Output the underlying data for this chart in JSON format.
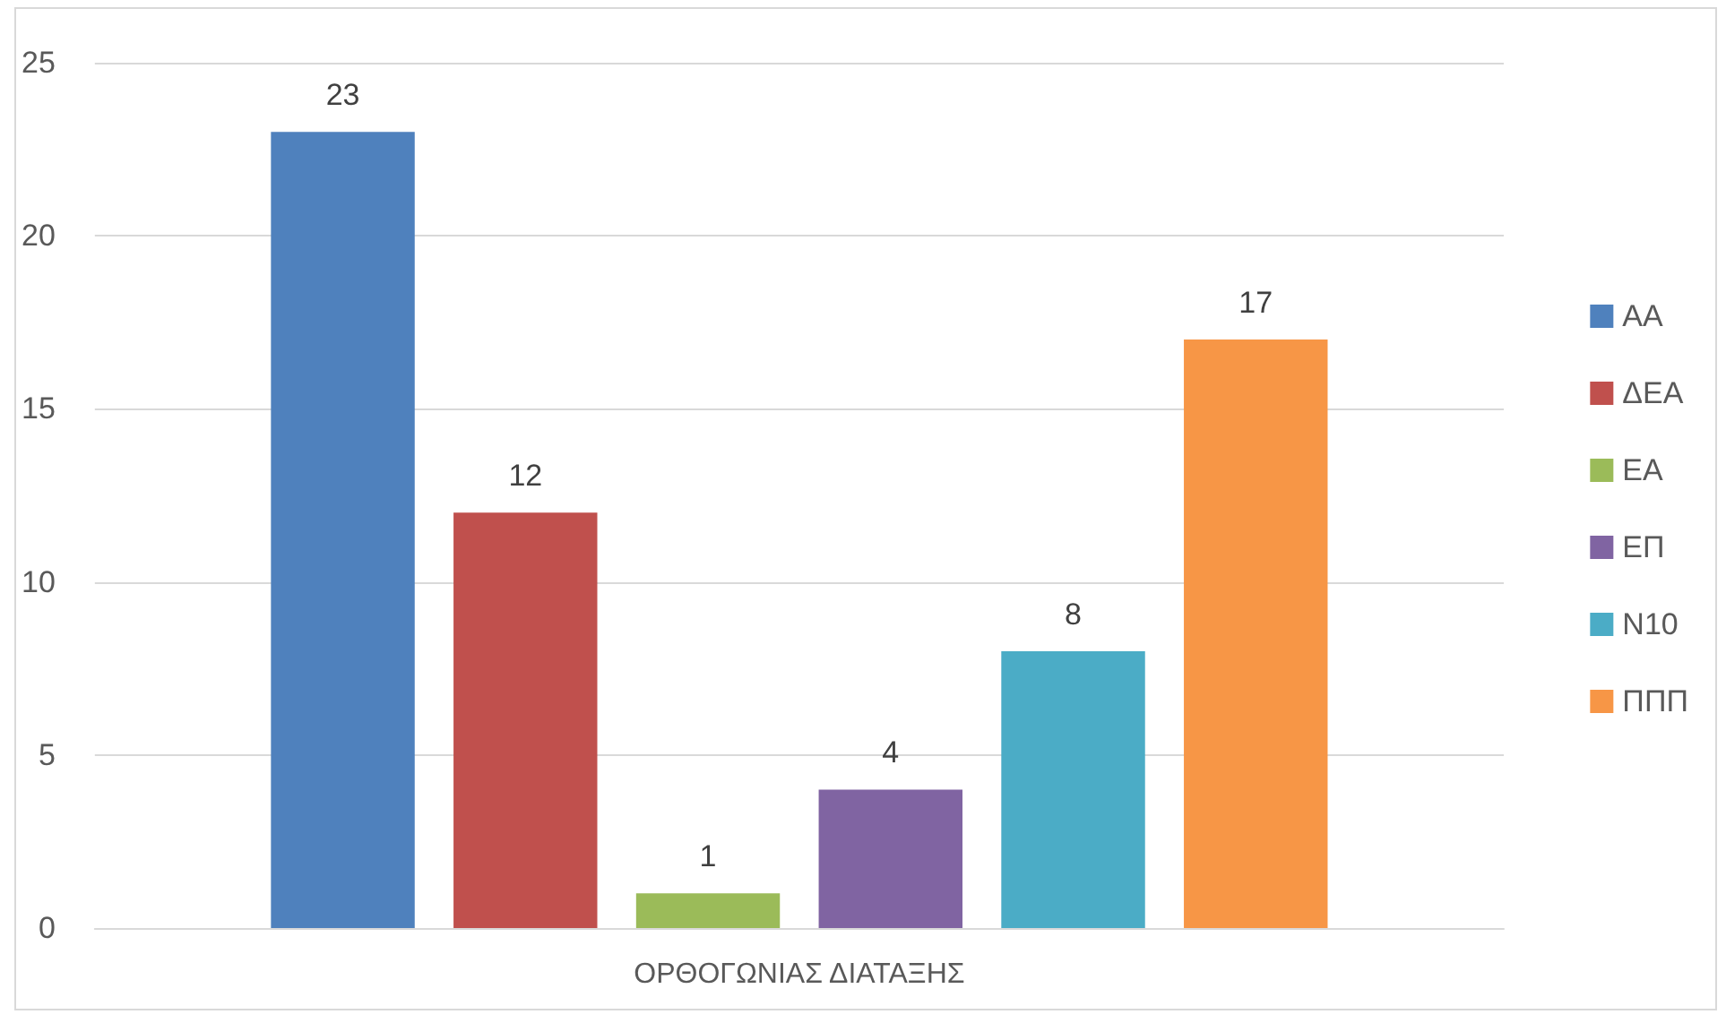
{
  "chart_data": {
    "type": "bar",
    "categories": [
      "ΟΡΘΟΓΩΝΙΑΣ ΔΙΑΤΑΞΗΣ"
    ],
    "series": [
      {
        "name": "ΑΑ",
        "color": "#4f81bd",
        "values": [
          23
        ]
      },
      {
        "name": "ΔΕΑ",
        "color": "#c0504d",
        "values": [
          12
        ]
      },
      {
        "name": "ΕΑ",
        "color": "#9bbb59",
        "values": [
          1
        ]
      },
      {
        "name": "ΕΠ",
        "color": "#8064a2",
        "values": [
          4
        ]
      },
      {
        "name": "Ν10",
        "color": "#4bacc6",
        "values": [
          8
        ]
      },
      {
        "name": "ΠΠΠ",
        "color": "#f79646",
        "values": [
          17
        ]
      }
    ],
    "ylim": [
      0,
      25
    ],
    "yticks": [
      0,
      5,
      10,
      15,
      20,
      25
    ],
    "grid": "y",
    "legend": "right",
    "data_labels": true
  }
}
